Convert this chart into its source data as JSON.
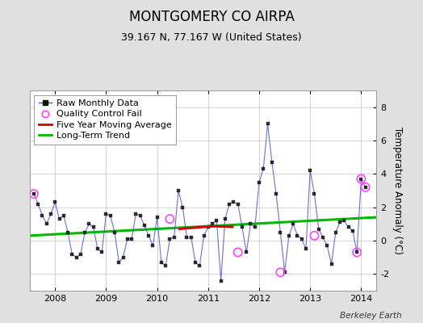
{
  "title": "MONTGOMERY CO AIRPA",
  "subtitle": "39.167 N, 77.167 W (United States)",
  "ylabel": "Temperature Anomaly (°C)",
  "credit": "Berkeley Earth",
  "ylim": [
    -3,
    9
  ],
  "yticks": [
    -2,
    0,
    2,
    4,
    6,
    8
  ],
  "xlim": [
    2007.5,
    2014.3
  ],
  "xticks": [
    2008,
    2009,
    2010,
    2011,
    2012,
    2013,
    2014
  ],
  "fig_bg": "#e0e0e0",
  "plot_bg": "#ffffff",
  "raw_x": [
    2007.583,
    2007.667,
    2007.75,
    2007.833,
    2007.917,
    2008.0,
    2008.083,
    2008.167,
    2008.25,
    2008.333,
    2008.417,
    2008.5,
    2008.583,
    2008.667,
    2008.75,
    2008.833,
    2008.917,
    2009.0,
    2009.083,
    2009.167,
    2009.25,
    2009.333,
    2009.417,
    2009.5,
    2009.583,
    2009.667,
    2009.75,
    2009.833,
    2009.917,
    2010.0,
    2010.083,
    2010.167,
    2010.25,
    2010.333,
    2010.417,
    2010.5,
    2010.583,
    2010.667,
    2010.75,
    2010.833,
    2010.917,
    2011.0,
    2011.083,
    2011.167,
    2011.25,
    2011.333,
    2011.417,
    2011.5,
    2011.583,
    2011.667,
    2011.75,
    2011.833,
    2011.917,
    2012.0,
    2012.083,
    2012.167,
    2012.25,
    2012.333,
    2012.417,
    2012.5,
    2012.583,
    2012.667,
    2012.75,
    2012.833,
    2012.917,
    2013.0,
    2013.083,
    2013.167,
    2013.25,
    2013.333,
    2013.417,
    2013.5,
    2013.583,
    2013.667,
    2013.75,
    2013.833,
    2013.917,
    2014.0,
    2014.083
  ],
  "raw_y": [
    2.8,
    2.2,
    1.5,
    1.0,
    1.6,
    2.3,
    1.3,
    1.5,
    0.5,
    -0.8,
    -1.0,
    -0.8,
    0.5,
    1.0,
    0.8,
    -0.5,
    -0.7,
    1.6,
    1.5,
    0.5,
    -1.3,
    -1.0,
    0.1,
    0.1,
    1.6,
    1.5,
    0.9,
    0.3,
    -0.3,
    1.4,
    -1.3,
    -1.5,
    0.1,
    0.2,
    3.0,
    2.0,
    0.2,
    0.2,
    -1.3,
    -1.5,
    0.3,
    0.8,
    1.0,
    1.2,
    -2.4,
    1.3,
    2.2,
    2.3,
    2.2,
    0.8,
    -0.7,
    1.0,
    0.8,
    3.5,
    4.3,
    7.0,
    4.7,
    2.8,
    0.5,
    -1.9,
    0.3,
    1.0,
    0.3,
    0.1,
    -0.5,
    4.2,
    2.8,
    0.7,
    0.2,
    -0.3,
    -1.4,
    0.5,
    1.1,
    1.2,
    0.8,
    0.6,
    -0.7,
    3.7,
    3.2
  ],
  "qc_x": [
    2007.583,
    2010.25,
    2011.583,
    2012.417,
    2013.083,
    2013.917,
    2014.0,
    2014.083
  ],
  "qc_y": [
    2.8,
    1.3,
    -0.7,
    -1.9,
    0.3,
    -0.7,
    3.7,
    3.2
  ],
  "ma_x": [
    2010.417,
    2010.5,
    2010.583,
    2010.667,
    2010.75,
    2010.833,
    2010.917,
    2011.0,
    2011.083,
    2011.167,
    2011.25,
    2011.333,
    2011.417,
    2011.5
  ],
  "ma_y": [
    0.7,
    0.72,
    0.74,
    0.76,
    0.78,
    0.8,
    0.82,
    0.84,
    0.86,
    0.86,
    0.85,
    0.84,
    0.83,
    0.82
  ],
  "trend_x": [
    2007.5,
    2014.3
  ],
  "trend_y": [
    0.3,
    1.4
  ],
  "line_color": "#5555cc",
  "line_alpha": 0.85,
  "marker_color": "#111111",
  "qc_color": "#ff44ff",
  "ma_color": "#dd0000",
  "trend_color": "#00bb00",
  "grid_color": "#cccccc",
  "title_fontsize": 12,
  "subtitle_fontsize": 9,
  "tick_fontsize": 8,
  "legend_fontsize": 8
}
